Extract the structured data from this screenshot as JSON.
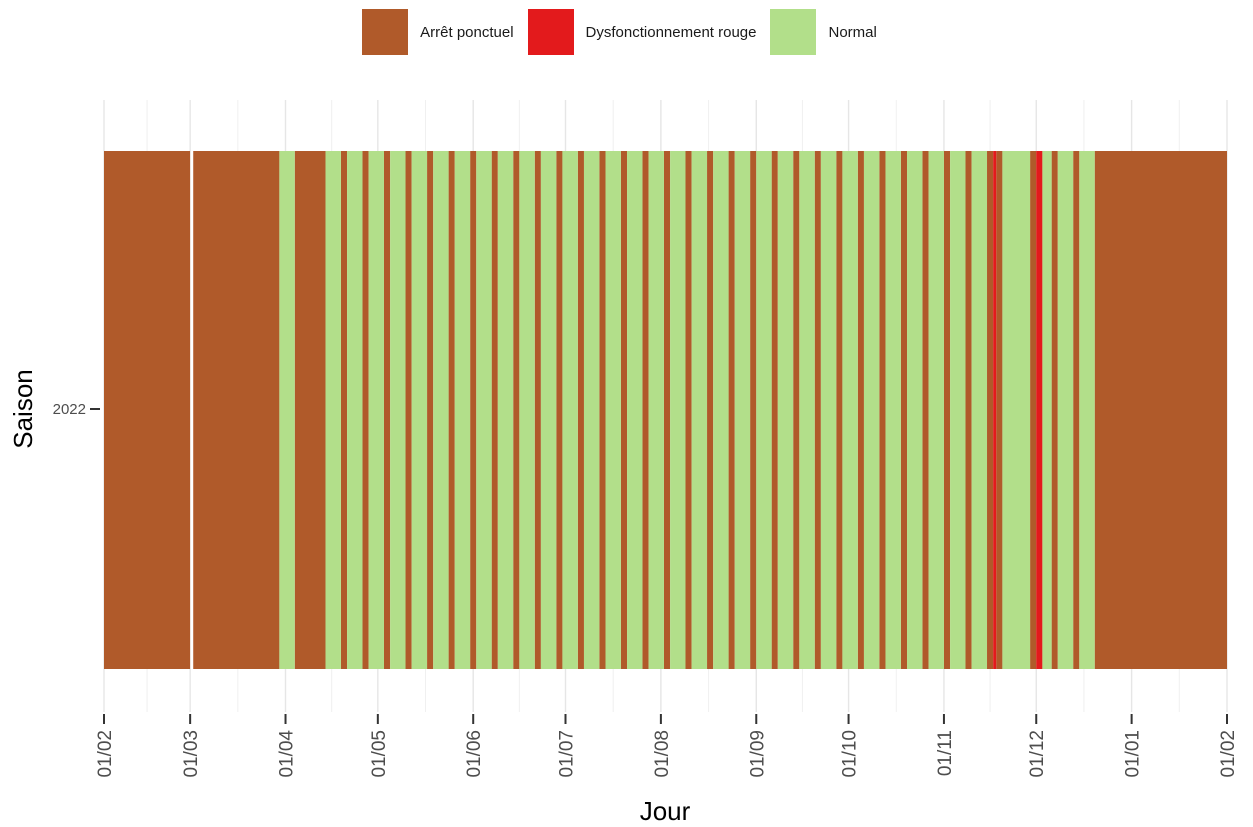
{
  "chart_data": {
    "type": "bar",
    "orientation": "horizontal-timeline",
    "xlabel": "Jour",
    "ylabel": "Saison",
    "xlim": [
      "2022-02-01",
      "2023-02-01"
    ],
    "x_tick_labels": [
      "01/02",
      "01/03",
      "01/04",
      "01/05",
      "01/06",
      "01/07",
      "01/08",
      "01/09",
      "01/10",
      "01/11",
      "01/12",
      "01/01",
      "01/02"
    ],
    "x_tick_dates": [
      "2022-02-01",
      "2022-03-01",
      "2022-04-01",
      "2022-05-01",
      "2022-06-01",
      "2022-07-01",
      "2022-08-01",
      "2022-09-01",
      "2022-10-01",
      "2022-11-01",
      "2022-12-01",
      "2023-01-01",
      "2023-02-01"
    ],
    "categories": [
      "2022"
    ],
    "legend": {
      "position": "top",
      "entries": [
        {
          "name": "Arrêt ponctuel",
          "color": "#B05A2A"
        },
        {
          "name": "Dysfonctionnement rouge",
          "color": "#E31A1C"
        },
        {
          "name": "Normal",
          "color": "#B2DF8A"
        }
      ]
    },
    "grid": true,
    "series": [
      {
        "name": "Arrêt ponctuel",
        "color": "#B05A2A",
        "intervals": [
          [
            "2022-02-01",
            "2022-03-01"
          ],
          [
            "2022-03-02",
            "2022-03-30"
          ],
          [
            "2022-04-04",
            "2022-04-14"
          ],
          [
            "2022-04-19",
            "2022-04-21"
          ],
          [
            "2022-04-26",
            "2022-04-28"
          ],
          [
            "2022-05-03",
            "2022-05-05"
          ],
          [
            "2022-05-10",
            "2022-05-12"
          ],
          [
            "2022-05-17",
            "2022-05-19"
          ],
          [
            "2022-05-24",
            "2022-05-26"
          ],
          [
            "2022-05-31",
            "2022-06-02"
          ],
          [
            "2022-06-07",
            "2022-06-09"
          ],
          [
            "2022-06-14",
            "2022-06-16"
          ],
          [
            "2022-06-21",
            "2022-06-23"
          ],
          [
            "2022-06-28",
            "2022-06-30"
          ],
          [
            "2022-07-05",
            "2022-07-07"
          ],
          [
            "2022-07-12",
            "2022-07-14"
          ],
          [
            "2022-07-19",
            "2022-07-21"
          ],
          [
            "2022-07-26",
            "2022-07-28"
          ],
          [
            "2022-08-02",
            "2022-08-04"
          ],
          [
            "2022-08-09",
            "2022-08-11"
          ],
          [
            "2022-08-16",
            "2022-08-18"
          ],
          [
            "2022-08-23",
            "2022-08-25"
          ],
          [
            "2022-08-30",
            "2022-09-01"
          ],
          [
            "2022-09-06",
            "2022-09-08"
          ],
          [
            "2022-09-13",
            "2022-09-15"
          ],
          [
            "2022-09-20",
            "2022-09-22"
          ],
          [
            "2022-09-27",
            "2022-09-29"
          ],
          [
            "2022-10-04",
            "2022-10-06"
          ],
          [
            "2022-10-11",
            "2022-10-13"
          ],
          [
            "2022-10-18",
            "2022-10-20"
          ],
          [
            "2022-10-25",
            "2022-10-27"
          ],
          [
            "2022-11-01",
            "2022-11-03"
          ],
          [
            "2022-11-08",
            "2022-11-10"
          ],
          [
            "2022-11-15",
            "2022-11-17"
          ],
          [
            "2022-11-18",
            "2022-11-20"
          ],
          [
            "2022-11-29",
            "2022-12-01"
          ],
          [
            "2022-12-06",
            "2022-12-08"
          ],
          [
            "2022-12-13",
            "2022-12-15"
          ],
          [
            "2022-12-20",
            "2023-02-01"
          ]
        ]
      },
      {
        "name": "Dysfonctionnement rouge",
        "color": "#E31A1C",
        "intervals": [
          [
            "2022-11-17",
            "2022-11-18"
          ],
          [
            "2022-12-01",
            "2022-12-03"
          ]
        ]
      },
      {
        "name": "Normal",
        "color": "#B2DF8A",
        "intervals": [
          [
            "2022-03-30",
            "2022-04-04"
          ],
          [
            "2022-04-14",
            "2022-04-19"
          ],
          [
            "2022-04-21",
            "2022-04-26"
          ],
          [
            "2022-04-28",
            "2022-05-03"
          ],
          [
            "2022-05-05",
            "2022-05-10"
          ],
          [
            "2022-05-12",
            "2022-05-17"
          ],
          [
            "2022-05-19",
            "2022-05-24"
          ],
          [
            "2022-05-26",
            "2022-05-31"
          ],
          [
            "2022-06-02",
            "2022-06-07"
          ],
          [
            "2022-06-09",
            "2022-06-14"
          ],
          [
            "2022-06-16",
            "2022-06-21"
          ],
          [
            "2022-06-23",
            "2022-06-28"
          ],
          [
            "2022-06-30",
            "2022-07-05"
          ],
          [
            "2022-07-07",
            "2022-07-12"
          ],
          [
            "2022-07-14",
            "2022-07-19"
          ],
          [
            "2022-07-21",
            "2022-07-26"
          ],
          [
            "2022-07-28",
            "2022-08-02"
          ],
          [
            "2022-08-04",
            "2022-08-09"
          ],
          [
            "2022-08-11",
            "2022-08-16"
          ],
          [
            "2022-08-18",
            "2022-08-23"
          ],
          [
            "2022-08-25",
            "2022-08-30"
          ],
          [
            "2022-09-01",
            "2022-09-06"
          ],
          [
            "2022-09-08",
            "2022-09-13"
          ],
          [
            "2022-09-15",
            "2022-09-20"
          ],
          [
            "2022-09-22",
            "2022-09-27"
          ],
          [
            "2022-09-29",
            "2022-10-04"
          ],
          [
            "2022-10-06",
            "2022-10-11"
          ],
          [
            "2022-10-13",
            "2022-10-18"
          ],
          [
            "2022-10-20",
            "2022-10-25"
          ],
          [
            "2022-10-27",
            "2022-11-01"
          ],
          [
            "2022-11-03",
            "2022-11-08"
          ],
          [
            "2022-11-10",
            "2022-11-15"
          ],
          [
            "2022-11-20",
            "2022-11-29"
          ],
          [
            "2022-12-03",
            "2022-12-06"
          ],
          [
            "2022-12-08",
            "2022-12-13"
          ],
          [
            "2022-12-15",
            "2022-12-20"
          ]
        ]
      }
    ]
  }
}
